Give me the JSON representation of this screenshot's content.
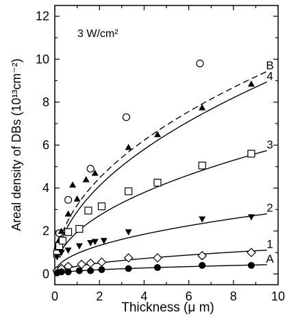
{
  "chart_data": {
    "type": "scatter",
    "annotation": "3 W/cm²",
    "xlabel": "Thickness (μ m)",
    "ylabel": "Areal density of DBs (10¹³cm⁻²)",
    "xlim": [
      0,
      10
    ],
    "ylim": [
      -0.5,
      12.5
    ],
    "xticks": [
      0,
      2,
      4,
      6,
      8,
      10
    ],
    "yticks": [
      0,
      2,
      4,
      6,
      8,
      10,
      12
    ],
    "grid": false,
    "series": [
      {
        "name": "B",
        "marker": "open-circle",
        "line": "dashed",
        "points": [
          [
            0.2,
            1.9
          ],
          [
            0.6,
            3.45
          ],
          [
            1.6,
            4.9
          ],
          [
            3.2,
            7.3
          ],
          [
            6.5,
            9.8
          ]
        ],
        "fit_a": 3.2,
        "fit_b": 0.48
      },
      {
        "name": "4",
        "marker": "filled-triangle-up",
        "line": "solid",
        "points": [
          [
            0.1,
            1.3
          ],
          [
            0.2,
            1.6
          ],
          [
            0.3,
            2.0
          ],
          [
            0.6,
            2.8
          ],
          [
            0.8,
            4.15
          ],
          [
            1.0,
            3.5
          ],
          [
            1.4,
            4.4
          ],
          [
            1.8,
            4.7
          ],
          [
            3.3,
            5.9
          ],
          [
            4.6,
            6.5
          ],
          [
            6.6,
            7.75
          ],
          [
            8.8,
            8.85
          ]
        ],
        "fit_a": 2.9,
        "fit_b": 0.5
      },
      {
        "name": "3",
        "marker": "open-square",
        "line": "solid",
        "points": [
          [
            0.1,
            0.95
          ],
          [
            0.2,
            1.3
          ],
          [
            0.35,
            1.55
          ],
          [
            0.6,
            1.95
          ],
          [
            1.1,
            2.1
          ],
          [
            1.5,
            2.95
          ],
          [
            2.1,
            3.15
          ],
          [
            3.3,
            3.85
          ],
          [
            4.6,
            4.25
          ],
          [
            6.6,
            5.05
          ],
          [
            8.8,
            5.6
          ]
        ],
        "fit_a": 1.95,
        "fit_b": 0.48
      },
      {
        "name": "2",
        "marker": "filled-triangle-down",
        "line": "solid",
        "points": [
          [
            0.1,
            0.8
          ],
          [
            0.3,
            1.0
          ],
          [
            0.6,
            1.1
          ],
          [
            1.1,
            1.3
          ],
          [
            1.6,
            1.45
          ],
          [
            1.8,
            1.5
          ],
          [
            2.2,
            1.55
          ],
          [
            3.3,
            1.95
          ],
          [
            6.6,
            2.55
          ],
          [
            8.8,
            2.65
          ]
        ],
        "fit_a": 0.95,
        "fit_b": 0.48
      },
      {
        "name": "1",
        "marker": "open-diamond",
        "line": "solid",
        "points": [
          [
            0.1,
            0.15
          ],
          [
            0.3,
            0.25
          ],
          [
            0.6,
            0.35
          ],
          [
            1.2,
            0.45
          ],
          [
            1.6,
            0.5
          ],
          [
            2.1,
            0.55
          ],
          [
            3.3,
            0.75
          ],
          [
            4.6,
            0.75
          ],
          [
            6.6,
            0.85
          ],
          [
            8.8,
            1.0
          ]
        ],
        "fit_a": 0.36,
        "fit_b": 0.5
      },
      {
        "name": "A",
        "marker": "filled-circle",
        "line": "solid",
        "points": [
          [
            0.1,
            0.05
          ],
          [
            0.3,
            0.1
          ],
          [
            0.6,
            0.1
          ],
          [
            1.1,
            0.15
          ],
          [
            1.6,
            0.15
          ],
          [
            2.1,
            0.2
          ],
          [
            3.3,
            0.25
          ],
          [
            4.6,
            0.3
          ],
          [
            6.6,
            0.4
          ],
          [
            8.8,
            0.4
          ]
        ],
        "fit_a": 0.14,
        "fit_b": 0.5
      }
    ]
  },
  "colors": {
    "ink": "#000000",
    "background": "#ffffff"
  }
}
